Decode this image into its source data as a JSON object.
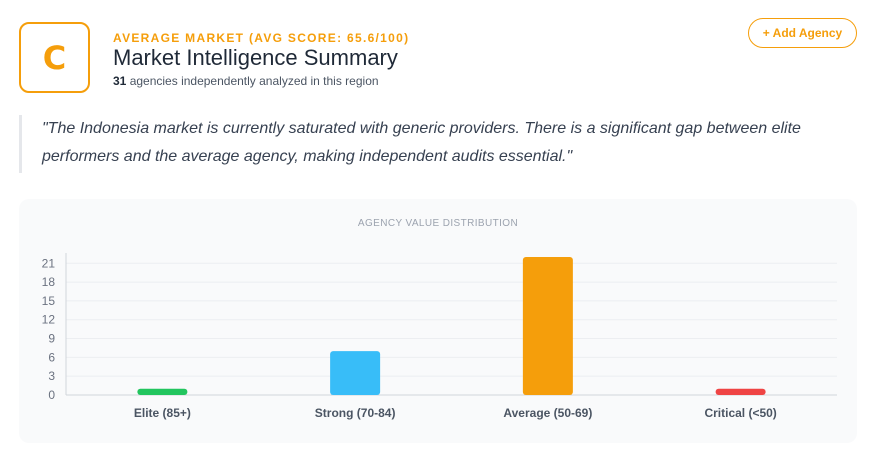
{
  "header": {
    "grade": "C",
    "kicker": "AVERAGE MARKET (AVG SCORE: 65.6/100)",
    "title": "Market Intelligence Summary",
    "agency_count": "31",
    "subtitle_rest": " agencies independently analyzed in this region",
    "add_button": "+ Add Agency"
  },
  "quote": "\"The Indonesia market is currently saturated with generic providers. There is a significant gap between elite performers and the average agency, making independent audits essential.\"",
  "chart_data": {
    "type": "bar",
    "title": "AGENCY VALUE DISTRIBUTION",
    "categories": [
      "Elite (85+)",
      "Strong (70-84)",
      "Average (50-69)",
      "Critical (<50)"
    ],
    "values": [
      1,
      7,
      22,
      1
    ],
    "colors": [
      "#22c55e",
      "#38bdf8",
      "#f59e0b",
      "#ef4444"
    ],
    "yticks": [
      0,
      3,
      6,
      9,
      12,
      15,
      18,
      21
    ],
    "ylim": [
      0,
      22
    ],
    "xlabel": "",
    "ylabel": "",
    "grid": true
  }
}
